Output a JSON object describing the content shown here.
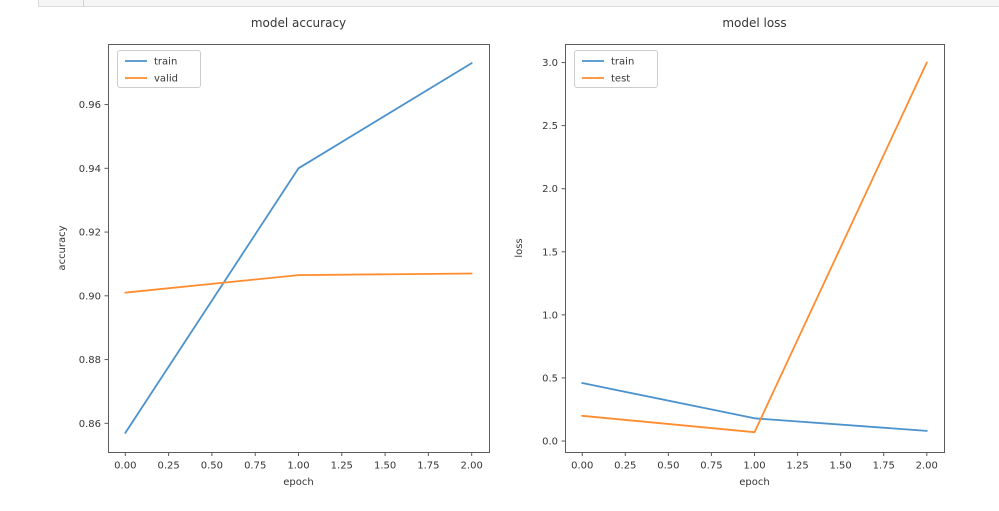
{
  "top_bar": {
    "bg_color": "#f5f5f5",
    "border_color": "#dcdcdc"
  },
  "style": {
    "text_color": "#363636",
    "spine_color": "#5c5c5c",
    "legend_border_color": "#cccccc",
    "legend_bg_color": "#ffffff",
    "figure_bg": "#ffffff"
  },
  "chart_data": [
    {
      "type": "line",
      "title": "model accuracy",
      "xlabel": "epoch",
      "ylabel": "accuracy",
      "x": [
        0,
        1,
        2
      ],
      "series": [
        {
          "name": "train",
          "color": "#4c92cd",
          "values": [
            0.857,
            0.94,
            0.973
          ]
        },
        {
          "name": "valid",
          "color": "#ff8c2e",
          "values": [
            0.901,
            0.9065,
            0.907
          ]
        }
      ],
      "legend": {
        "position": "upper-left",
        "entries": [
          "train",
          "valid"
        ]
      },
      "grid": false,
      "xlim": [
        -0.1,
        2.1
      ],
      "ylim": [
        0.851,
        0.979
      ],
      "xticks": [
        0,
        0.25,
        0.5,
        0.75,
        1,
        1.25,
        1.5,
        1.75,
        2
      ],
      "xtick_labels": [
        "0.00",
        "0.25",
        "0.50",
        "0.75",
        "1.00",
        "1.25",
        "1.50",
        "1.75",
        "2.00"
      ],
      "yticks": [
        0.86,
        0.88,
        0.9,
        0.92,
        0.94,
        0.96
      ],
      "ytick_labels": [
        "0.86",
        "0.88",
        "0.90",
        "0.92",
        "0.94",
        "0.96"
      ]
    },
    {
      "type": "line",
      "title": "model loss",
      "xlabel": "epoch",
      "ylabel": "loss",
      "x": [
        0,
        1,
        2
      ],
      "series": [
        {
          "name": "train",
          "color": "#4c92cd",
          "values": [
            0.46,
            0.18,
            0.08
          ]
        },
        {
          "name": "test",
          "color": "#ff8c2e",
          "values": [
            0.2,
            0.07,
            3.0
          ]
        }
      ],
      "legend": {
        "position": "upper-left",
        "entries": [
          "train",
          "test"
        ]
      },
      "grid": false,
      "xlim": [
        -0.1,
        2.1
      ],
      "ylim": [
        -0.087,
        3.147
      ],
      "xticks": [
        0,
        0.25,
        0.5,
        0.75,
        1,
        1.25,
        1.5,
        1.75,
        2
      ],
      "xtick_labels": [
        "0.00",
        "0.25",
        "0.50",
        "0.75",
        "1.00",
        "1.25",
        "1.50",
        "1.75",
        "2.00"
      ],
      "yticks": [
        0,
        0.5,
        1,
        1.5,
        2,
        2.5,
        3
      ],
      "ytick_labels": [
        "0.0",
        "0.5",
        "1.0",
        "1.5",
        "2.0",
        "2.5",
        "3.0"
      ]
    }
  ]
}
